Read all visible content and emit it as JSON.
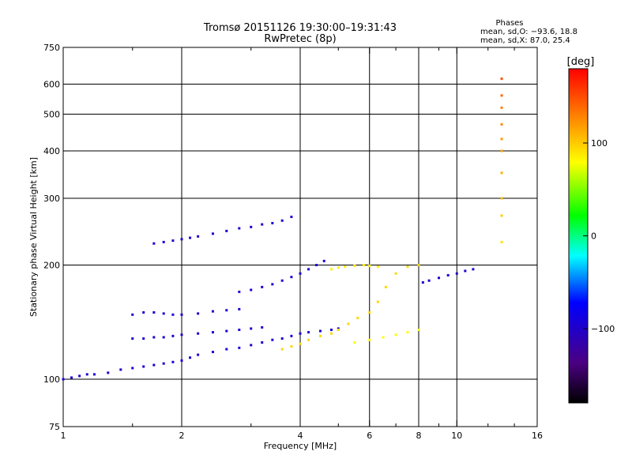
{
  "chart_data": {
    "type": "scatter",
    "title": "Tromsø 20151126 19:30:00–19:31:43",
    "subtitle": "RwPretec (8p)",
    "stats": {
      "heading": "Phases",
      "line_o": "mean, sd,O: −93.6, 18.8",
      "line_x": "mean, sd,X:  87.0, 25.4"
    },
    "xlabel": "Frequency [MHz]",
    "ylabel": "Stationary phase Virtual Height [km]",
    "x_scale": "log",
    "y_scale": "log",
    "xlim": [
      1,
      16
    ],
    "ylim": [
      75,
      750
    ],
    "x_ticks": [
      1,
      2,
      4,
      6,
      8,
      10,
      16
    ],
    "x_tick_labels": [
      "1",
      "2",
      "4",
      "6",
      "8",
      "10",
      "16"
    ],
    "x_minor_ticks": [
      1.5,
      3,
      5,
      7,
      9,
      12,
      14
    ],
    "y_ticks": [
      75,
      100,
      200,
      300,
      400,
      500,
      600,
      750
    ],
    "y_tick_labels": [
      "75",
      "100",
      "200",
      "300",
      "400",
      "500",
      "600",
      "750"
    ],
    "grid_x": [
      2,
      4,
      6,
      8,
      10
    ],
    "grid_y": [
      100,
      200,
      300,
      400,
      500,
      600
    ],
    "colorbar": {
      "label": "[deg]",
      "range": [
        -180,
        180
      ],
      "tick_values": [
        100,
        0,
        -100
      ],
      "tick_labels": [
        "100",
        "0",
        "−100"
      ]
    },
    "series": [
      {
        "trace": "O-mode E/F main trace",
        "x": [
          1.0,
          1.05,
          1.1,
          1.15,
          1.2,
          1.3,
          1.4,
          1.5,
          1.6,
          1.7,
          1.8,
          1.9,
          2.0,
          2.1,
          2.2,
          2.4,
          2.6,
          2.8,
          3.0,
          3.2,
          3.4,
          3.6,
          3.8,
          4.0,
          4.2,
          4.5,
          4.8,
          5.0
        ],
        "y": [
          100,
          101,
          102,
          103,
          103,
          104,
          106,
          107,
          108,
          109,
          110,
          111,
          112,
          114,
          116,
          118,
          120,
          121,
          123,
          125,
          127,
          128,
          130,
          132,
          133,
          134,
          135,
          136
        ],
        "phase": [
          -95,
          -95,
          -95,
          -95,
          -95,
          -95,
          -95,
          -95,
          -95,
          -95,
          -95,
          -95,
          -95,
          -95,
          -95,
          -95,
          -95,
          -95,
          -95,
          -95,
          -95,
          -95,
          -95,
          -95,
          -95,
          -95,
          -95,
          -95
        ]
      },
      {
        "trace": "O-mode second hop 130-140 km",
        "x": [
          1.5,
          1.6,
          1.7,
          1.8,
          1.9,
          2.0,
          2.2,
          2.4,
          2.6,
          2.8,
          3.0,
          3.2
        ],
        "y": [
          128,
          128,
          129,
          129,
          130,
          131,
          132,
          133,
          134,
          135,
          136,
          137
        ],
        "phase": [
          -95,
          -95,
          -95,
          -95,
          -95,
          -95,
          -95,
          -95,
          -95,
          -95,
          -95,
          -95
        ]
      },
      {
        "trace": "O-mode 140-150 km",
        "x": [
          1.5,
          1.6,
          1.7,
          1.8,
          1.9,
          2.0,
          2.2,
          2.4,
          2.6,
          2.8
        ],
        "y": [
          148,
          150,
          150,
          149,
          148,
          148,
          149,
          151,
          152,
          153
        ],
        "phase": [
          -95,
          -95,
          -95,
          -95,
          -95,
          -95,
          -95,
          -95,
          -95,
          -95
        ]
      },
      {
        "trace": "F-layer 220-260 km",
        "x": [
          1.7,
          1.8,
          1.9,
          2.0,
          2.1,
          2.2,
          2.4,
          2.6,
          2.8,
          3.0,
          3.2,
          3.4,
          3.6,
          3.8
        ],
        "y": [
          228,
          230,
          232,
          234,
          236,
          238,
          242,
          246,
          250,
          252,
          256,
          258,
          262,
          268
        ],
        "phase": [
          -95,
          -95,
          -95,
          -95,
          -95,
          -95,
          -95,
          -95,
          -95,
          -95,
          -95,
          -95,
          -95,
          -95
        ]
      },
      {
        "trace": "F-layer cusp 150-200 km",
        "x": [
          2.8,
          3.0,
          3.2,
          3.4,
          3.6,
          3.8,
          4.0,
          4.2,
          4.4,
          4.6
        ],
        "y": [
          170,
          172,
          175,
          178,
          182,
          186,
          190,
          195,
          200,
          205
        ],
        "phase": [
          -95,
          -95,
          -95,
          -95,
          -95,
          -95,
          -95,
          -95,
          -95,
          -95
        ]
      },
      {
        "trace": "X-mode 120-200 km",
        "x": [
          3.6,
          3.8,
          4.0,
          4.2,
          4.5,
          4.8,
          5.0,
          5.3,
          5.6,
          6.0,
          6.3,
          6.6,
          7.0,
          7.5,
          8.0
        ],
        "y": [
          120,
          122,
          124,
          127,
          130,
          132,
          135,
          140,
          145,
          150,
          160,
          175,
          190,
          198,
          200
        ],
        "phase": [
          95,
          95,
          95,
          95,
          95,
          95,
          95,
          95,
          95,
          95,
          95,
          95,
          95,
          95,
          95
        ]
      },
      {
        "trace": "X-mode 125-140 km",
        "x": [
          5.5,
          6.0,
          6.5,
          7.0,
          7.5,
          8.0
        ],
        "y": [
          125,
          127,
          129,
          131,
          133,
          135
        ],
        "phase": [
          80,
          80,
          80,
          80,
          80,
          80
        ]
      },
      {
        "trace": "X-mode 190-200 km",
        "x": [
          4.8,
          5.0,
          5.2,
          5.5,
          5.8,
          6.0,
          6.3
        ],
        "y": [
          195,
          197,
          198,
          199,
          200,
          199,
          198
        ],
        "phase": [
          85,
          85,
          85,
          85,
          85,
          85,
          85
        ]
      },
      {
        "trace": "high-frequency scatter",
        "x": [
          8.2,
          8.5,
          9.0,
          9.5,
          10.0,
          10.5,
          11.0
        ],
        "y": [
          180,
          182,
          185,
          188,
          190,
          193,
          195
        ],
        "phase": [
          -95,
          -95,
          -95,
          -95,
          -95,
          -95,
          -95
        ]
      },
      {
        "trace": "13 MHz column",
        "x": [
          13.0,
          13.0,
          13.0,
          13.0,
          13.0,
          13.0,
          13.0,
          13.0,
          13.0,
          13.0
        ],
        "y": [
          230,
          270,
          300,
          350,
          400,
          430,
          470,
          520,
          560,
          620
        ],
        "phase": [
          90,
          100,
          105,
          110,
          115,
          120,
          125,
          130,
          140,
          150
        ]
      }
    ]
  }
}
